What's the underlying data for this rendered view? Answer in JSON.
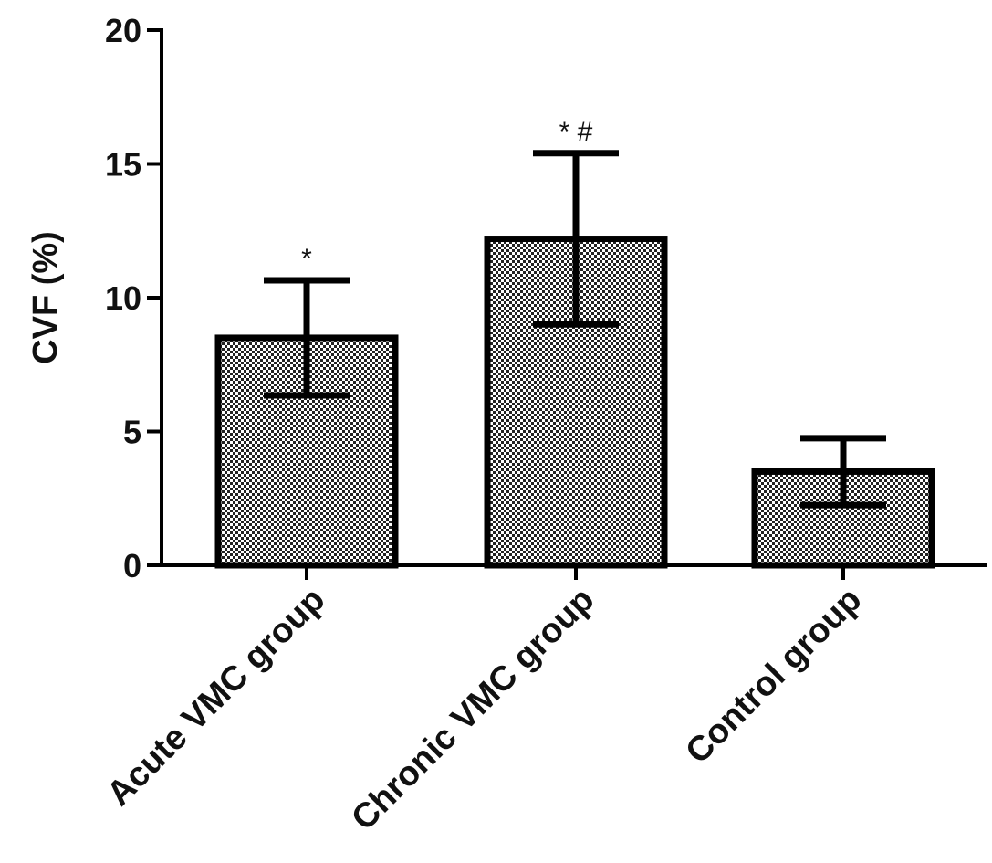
{
  "chart_data": {
    "type": "bar",
    "title": "",
    "xlabel": "",
    "ylabel": "CVF (%)",
    "ylim": [
      0,
      20
    ],
    "yticks": [
      0,
      5,
      10,
      15,
      20
    ],
    "ytick_labels": [
      "0",
      "5",
      "10",
      "15",
      "20"
    ],
    "categories": [
      "Acute VMC group",
      "Chronic VMC group",
      "Control group"
    ],
    "values": [
      8.5,
      12.2,
      3.5
    ],
    "error": [
      2.15,
      3.2,
      1.25
    ],
    "annotations": [
      "*",
      "* #",
      ""
    ],
    "grid": false,
    "bar_fill": "checkered",
    "colors": {
      "edge": "#000000",
      "fill_dark": "#222222",
      "fill_light": "#ffffff"
    }
  }
}
